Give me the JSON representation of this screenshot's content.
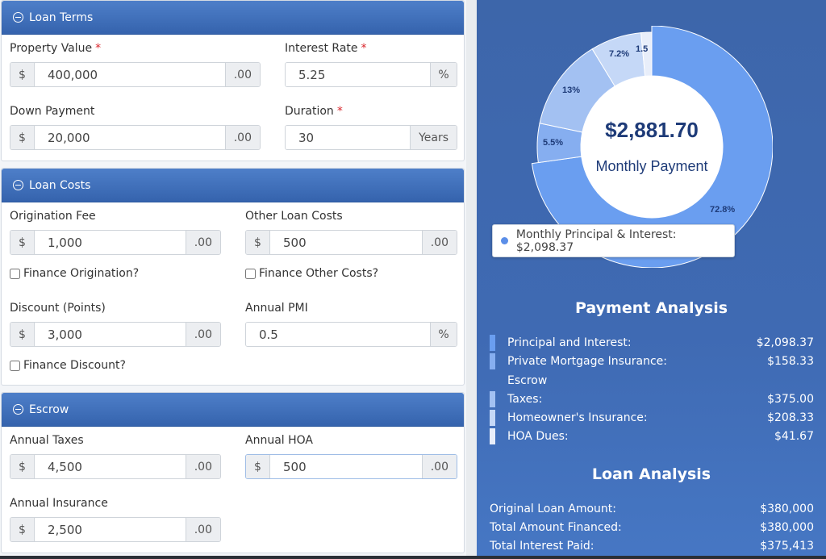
{
  "loan_terms": {
    "title": "Loan Terms",
    "property_value": {
      "label": "Property Value",
      "prefix": "$",
      "value": "400,000",
      "suffix": ".00"
    },
    "interest_rate": {
      "label": "Interest Rate",
      "value": "5.25",
      "suffix": "%"
    },
    "down_payment": {
      "label": "Down Payment",
      "prefix": "$",
      "value": "20,000",
      "suffix": ".00"
    },
    "duration": {
      "label": "Duration",
      "value": "30",
      "suffix": "Years"
    }
  },
  "loan_costs": {
    "title": "Loan Costs",
    "origination_fee": {
      "label": "Origination Fee",
      "prefix": "$",
      "value": "1,000",
      "suffix": ".00"
    },
    "other_loan_costs": {
      "label": "Other Loan Costs",
      "prefix": "$",
      "value": "500",
      "suffix": ".00"
    },
    "finance_origination": "Finance Origination?",
    "finance_other_costs": "Finance Other Costs?",
    "discount_points": {
      "label": "Discount (Points)",
      "prefix": "$",
      "value": "3,000",
      "suffix": ".00"
    },
    "annual_pmi": {
      "label": "Annual PMI",
      "value": "0.5",
      "suffix": "%"
    },
    "finance_discount": "Finance Discount?"
  },
  "escrow": {
    "title": "Escrow",
    "annual_taxes": {
      "label": "Annual Taxes",
      "prefix": "$",
      "value": "4,500",
      "suffix": ".00"
    },
    "annual_hoa": {
      "label": "Annual HOA",
      "prefix": "$",
      "value": "500",
      "suffix": ".00"
    },
    "annual_insurance": {
      "label": "Annual Insurance",
      "prefix": "$",
      "value": "2,500",
      "suffix": ".00"
    }
  },
  "chart_data": {
    "type": "pie",
    "donut": true,
    "center_value": "$2,881.70",
    "center_label": "Monthly Payment",
    "slices": [
      {
        "label": "72.8%",
        "value": 72.8,
        "color": "#6a9ef0"
      },
      {
        "label": "5.5%",
        "value": 5.5,
        "color": "#86aef0"
      },
      {
        "label": "13%",
        "value": 13.0,
        "color": "#a3c1f2"
      },
      {
        "label": "7.2%",
        "value": 7.2,
        "color": "#c5d8f7"
      },
      {
        "label": "1.5",
        "value": 1.5,
        "color": "#e8eefa"
      }
    ],
    "tooltip": "Monthly Principal & Interest: $2,098.37"
  },
  "payment_analysis": {
    "title": "Payment Analysis",
    "rows": [
      {
        "label": "Principal and Interest:",
        "value": "$2,098.37",
        "color": "#6a9ef0"
      },
      {
        "label": "Private Mortgage Insurance:",
        "value": "$158.33",
        "color": "#86aef0"
      },
      {
        "label": "Escrow",
        "value": "",
        "color": ""
      },
      {
        "label": "Taxes:",
        "value": "$375.00",
        "color": "#a3c1f2"
      },
      {
        "label": "Homeowner's Insurance:",
        "value": "$208.33",
        "color": "#c5d8f7"
      },
      {
        "label": "HOA Dues:",
        "value": "$41.67",
        "color": "#e8eefa"
      }
    ]
  },
  "loan_analysis": {
    "title": "Loan Analysis",
    "rows": [
      {
        "label": "Original Loan Amount:",
        "value": "$380,000"
      },
      {
        "label": "Total Amount Financed:",
        "value": "$380,000"
      },
      {
        "label": "Total Interest Paid:",
        "value": "$375,413"
      }
    ]
  }
}
